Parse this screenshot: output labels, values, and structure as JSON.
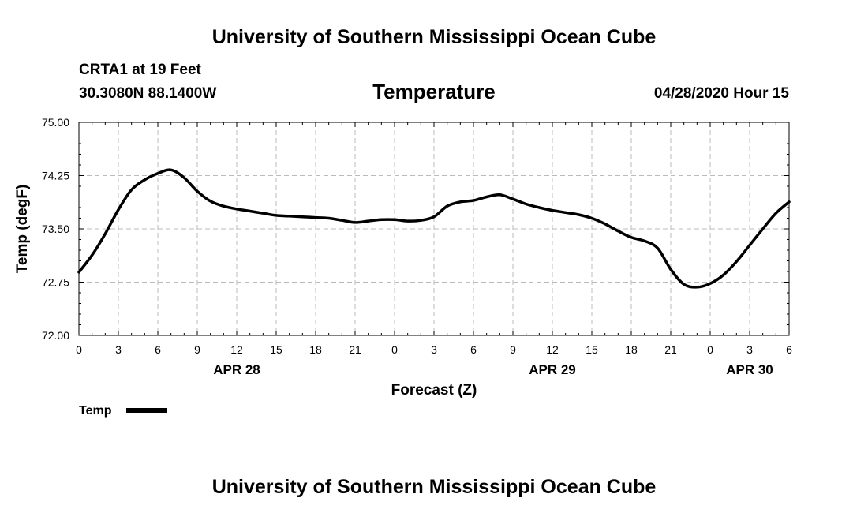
{
  "header": {
    "org_title": "University of Southern Mississippi Ocean Cube",
    "station": "CRTA1 at 19 Feet",
    "coords": "30.3080N 88.1400W",
    "variable": "Temperature",
    "datetime": "04/28/2020 Hour 15"
  },
  "footer": {
    "org_title": "University of Southern Mississippi Ocean Cube"
  },
  "legend": {
    "label": "Temp",
    "line_color": "#000000"
  },
  "chart_data": {
    "type": "line",
    "title": "Temperature",
    "xlabel": "Forecast (Z)",
    "ylabel": "Temp (degF)",
    "xlim": [
      0,
      54
    ],
    "ylim": [
      72.0,
      75.0
    ],
    "x_ticks": [
      0,
      3,
      6,
      9,
      12,
      15,
      18,
      21,
      24,
      27,
      30,
      33,
      36,
      39,
      42,
      45,
      48,
      51,
      54
    ],
    "x_tick_labels": [
      "0",
      "3",
      "6",
      "9",
      "12",
      "15",
      "18",
      "21",
      "0",
      "3",
      "6",
      "9",
      "12",
      "15",
      "18",
      "21",
      "0",
      "3",
      "6"
    ],
    "y_ticks": [
      72.0,
      72.75,
      73.5,
      74.25,
      75.0
    ],
    "y_tick_labels": [
      "72.00",
      "72.75",
      "73.50",
      "74.25",
      "75.00"
    ],
    "day_labels": [
      {
        "x": 12,
        "label": "APR 28"
      },
      {
        "x": 36,
        "label": "APR 29"
      },
      {
        "x": 51,
        "label": "APR 30"
      }
    ],
    "grid": true,
    "legend_position": "bottom-left",
    "series": [
      {
        "name": "Temp",
        "color": "#000000",
        "x": [
          0,
          1,
          2,
          3,
          4,
          5,
          6,
          7,
          8,
          9,
          10,
          11,
          12,
          13,
          14,
          15,
          16,
          17,
          18,
          19,
          20,
          21,
          22,
          23,
          24,
          25,
          26,
          27,
          28,
          29,
          30,
          31,
          32,
          33,
          34,
          35,
          36,
          37,
          38,
          39,
          40,
          41,
          42,
          43,
          44,
          45,
          46,
          47,
          48,
          49,
          50,
          51,
          52,
          53,
          54
        ],
        "values": [
          72.89,
          73.13,
          73.43,
          73.77,
          74.05,
          74.19,
          74.28,
          74.33,
          74.22,
          74.03,
          73.89,
          73.82,
          73.78,
          73.75,
          73.72,
          73.69,
          73.68,
          73.67,
          73.66,
          73.65,
          73.62,
          73.59,
          73.61,
          73.63,
          73.63,
          73.61,
          73.62,
          73.67,
          73.82,
          73.88,
          73.9,
          73.95,
          73.98,
          73.92,
          73.85,
          73.8,
          73.76,
          73.73,
          73.7,
          73.65,
          73.57,
          73.47,
          73.38,
          73.33,
          73.23,
          72.93,
          72.72,
          72.68,
          72.73,
          72.85,
          73.04,
          73.27,
          73.5,
          73.72,
          73.88
        ]
      }
    ]
  }
}
